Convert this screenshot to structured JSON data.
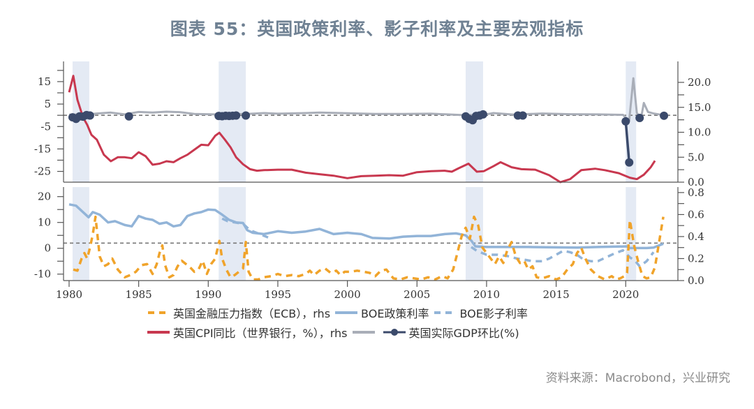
{
  "title": "图表 55：英国政策利率、影子利率及主要宏观指标",
  "source": "资料来源：Macrobond，兴业研究",
  "colors": {
    "cpi": "#c8384f",
    "gdp_line": "#a9aeb8",
    "gdp_dots": "#3b4a6b",
    "policy_rate": "#92b4d8",
    "shadow_rate": "#92b4d8",
    "stress_index": "#f0a32a",
    "recession": "#e4eaf4",
    "refline": "#777777"
  },
  "legend": [
    {
      "label": "英国金融压力指数（ECB），rhs",
      "key": "stress_index",
      "style": "dashed"
    },
    {
      "label": "BOE政策利率",
      "key": "policy_rate",
      "style": "solid"
    },
    {
      "label": "BOE影子利率",
      "key": "shadow_rate",
      "style": "dashed"
    },
    {
      "label": "英国CPI同比（世界银行，%），rhs",
      "key": "cpi",
      "style": "solid"
    },
    {
      "label": "",
      "key": "gdp_line",
      "style": "solid"
    },
    {
      "label": "英国实际GDP环比(%)",
      "key": "gdp_dots",
      "style": "dot-line"
    }
  ],
  "chart_data": [
    {
      "type": "line",
      "title": "英国CPI同比与实际GDP环比",
      "x_ticks": [
        1980,
        1985,
        1990,
        1995,
        2000,
        2005,
        2010,
        2015,
        2020
      ],
      "xlim": [
        1979.6,
        2023.75
      ],
      "left_axis": {
        "ticks": [
          15,
          5,
          -5,
          -15,
          -25
        ],
        "minor_ticks": [
          20,
          10,
          0,
          -10,
          -20
        ],
        "ylim": [
          -29.8,
          24
        ]
      },
      "right_axis": {
        "ticks": [
          "20.0",
          "15.0",
          "10.0",
          "5.0",
          "0.0"
        ],
        "values": [
          20,
          15,
          10,
          5,
          0
        ],
        "ylim": [
          0,
          24.2
        ]
      },
      "reference_line": {
        "axis": "left",
        "value": 0
      },
      "recessions": [
        [
          1980.25,
          1981.45
        ],
        [
          1990.75,
          1992.7
        ],
        [
          2008.5,
          2009.75
        ],
        [
          2020.0,
          2020.75
        ]
      ],
      "series": [
        {
          "name": "英国CPI同比（世界银行，%）",
          "axis": "right",
          "key": "cpi",
          "x": [
            1980.0,
            1980.3,
            1980.6,
            1981.0,
            1981.3,
            1981.6,
            1982.0,
            1982.5,
            1983.0,
            1983.5,
            1984.0,
            1984.5,
            1985.0,
            1985.5,
            1986.0,
            1986.5,
            1987.0,
            1987.5,
            1988.0,
            1988.5,
            1989.0,
            1989.5,
            1990.0,
            1990.5,
            1990.8,
            1991.2,
            1991.6,
            1992.0,
            1992.5,
            1993.0,
            1993.5,
            1994.0,
            1995.0,
            1996.0,
            1997.0,
            1998.0,
            1999.0,
            2000.0,
            2001.0,
            2002.0,
            2003.0,
            2004.0,
            2005.0,
            2006.0,
            2007.0,
            2007.5,
            2008.0,
            2008.7,
            2009.3,
            2009.8,
            2010.5,
            2011.0,
            2011.8,
            2012.5,
            2013.5,
            2014.5,
            2015.3,
            2016.0,
            2016.8,
            2017.8,
            2018.5,
            2019.5,
            2020.3,
            2020.8,
            2021.3,
            2021.8,
            2022.1
          ],
          "values": [
            18.0,
            21.3,
            16.5,
            13.0,
            11.5,
            9.5,
            8.5,
            5.5,
            4.2,
            5.0,
            5.0,
            4.8,
            6.0,
            5.2,
            3.5,
            3.7,
            4.2,
            4.0,
            4.8,
            5.5,
            6.5,
            7.5,
            7.4,
            9.3,
            9.9,
            8.5,
            7.0,
            5.0,
            3.6,
            2.6,
            2.3,
            2.4,
            2.5,
            2.5,
            1.9,
            1.6,
            1.3,
            0.8,
            1.2,
            1.3,
            1.4,
            1.3,
            2.0,
            2.2,
            2.3,
            2.1,
            2.8,
            3.7,
            2.1,
            2.2,
            3.2,
            4.0,
            3.0,
            2.6,
            2.5,
            1.4,
            0.0,
            0.6,
            2.4,
            2.7,
            2.4,
            1.8,
            0.9,
            0.6,
            1.5,
            3.0,
            4.3
          ]
        },
        {
          "name": "英国实际GDP环比(%) 折线",
          "axis": "left",
          "key": "gdp_line",
          "x": [
            1980.0,
            1981.5,
            1982.0,
            1983.0,
            1984.0,
            1985.0,
            1986.0,
            1987.0,
            1988.0,
            1989.0,
            1990.5,
            1992.8,
            1994.0,
            1995.0,
            1997.0,
            1998.0,
            2000.0,
            2002.0,
            2004.0,
            2006.0,
            2008.3,
            2009.8,
            2010.5,
            2012.0,
            2014.0,
            2016.0,
            2018.0,
            2019.8,
            2020.25,
            2020.55,
            2020.8,
            2021.1,
            2021.3,
            2021.6,
            2022.0,
            2022.8
          ],
          "values": [
            0.3,
            0.5,
            0.8,
            1.2,
            0.4,
            1.5,
            1.2,
            1.6,
            1.4,
            0.6,
            0.4,
            0.6,
            1.0,
            0.7,
            1.0,
            1.2,
            0.9,
            0.6,
            0.6,
            0.7,
            0.1,
            0.2,
            1.0,
            0.3,
            0.8,
            0.5,
            0.4,
            0.2,
            -2.5,
            16.5,
            1.0,
            -1.3,
            5.5,
            1.5,
            0.8,
            0.0
          ]
        },
        {
          "name": "英国实际GDP环比(%) 衰退季度",
          "axis": "left",
          "key": "gdp_dots",
          "x": [
            1980.25,
            1980.5,
            1980.75,
            1981.0,
            1981.25,
            1981.5,
            1984.3,
            1990.75,
            1991.0,
            1991.25,
            1991.5,
            1991.75,
            1992.0,
            1992.7,
            2008.5,
            2008.75,
            2009.0,
            2009.25,
            2009.5,
            2009.75,
            2012.25,
            2012.6,
            2020.0,
            2020.25,
            2021.0,
            2022.75
          ],
          "values": [
            -0.9,
            -1.6,
            -0.5,
            -0.6,
            0.1,
            -0.1,
            -0.5,
            -0.3,
            -0.4,
            -0.2,
            -0.3,
            -0.2,
            -0.1,
            -0.1,
            -0.5,
            -1.6,
            -2.2,
            -0.3,
            -0.1,
            0.4,
            -0.1,
            -0.1,
            -2.7,
            -21.0,
            -1.2,
            -0.2
          ],
          "connect_range": [
            22,
            23
          ]
        }
      ]
    },
    {
      "type": "line",
      "title": "BOE政策利率、影子利率与英国金融压力指数",
      "x_ticks": [
        1980,
        1985,
        1990,
        1995,
        2000,
        2005,
        2010,
        2015,
        2020
      ],
      "x_tick_labels": [
        "1980",
        "1985",
        "1990",
        "1995",
        "2000",
        "2005",
        "2010",
        "2015",
        "2020"
      ],
      "xlim": [
        1979.6,
        2023.75
      ],
      "left_axis": {
        "ticks": [
          20,
          10,
          0,
          -10
        ],
        "minor_ticks": [
          15,
          5,
          -5
        ],
        "ylim": [
          -12.5,
          23.7
        ]
      },
      "right_axis": {
        "ticks": [
          "0.8",
          "0.6",
          "0.4",
          "0.2",
          "0.0"
        ],
        "values": [
          0.8,
          0.6,
          0.4,
          0.2,
          0.0
        ],
        "minor_ticks": [
          0.7,
          0.5,
          0.3,
          0.1
        ],
        "ylim": [
          0,
          0.85
        ]
      },
      "reference_line": {
        "axis": "left",
        "value": 2
      },
      "recessions": [
        [
          1980.25,
          1981.45
        ],
        [
          1990.75,
          1992.7
        ],
        [
          2008.5,
          2009.75
        ],
        [
          2020.0,
          2020.75
        ]
      ],
      "series": [
        {
          "name": "BOE政策利率",
          "axis": "left",
          "key": "policy_rate",
          "x": [
            1980.0,
            1980.5,
            1981.0,
            1981.4,
            1981.7,
            1982.2,
            1982.8,
            1983.3,
            1984.0,
            1984.5,
            1985.0,
            1985.5,
            1986.0,
            1986.5,
            1987.0,
            1987.5,
            1988.0,
            1988.5,
            1989.0,
            1989.5,
            1990.0,
            1990.5,
            1991.0,
            1991.5,
            1992.0,
            1992.5,
            1992.8,
            1993.2,
            1994.0,
            1995.0,
            1996.0,
            1997.0,
            1998.0,
            1998.5,
            1999.0,
            2000.0,
            2001.0,
            2001.8,
            2003.0,
            2004.0,
            2005.0,
            2006.0,
            2007.0,
            2007.8,
            2008.5,
            2008.9,
            2009.2,
            2010.0,
            2013.0,
            2016.5,
            2018.0,
            2020.1,
            2020.3,
            2021.5,
            2022.0,
            2022.7
          ],
          "values": [
            17.0,
            16.5,
            14.0,
            12.0,
            14.0,
            13.0,
            10.0,
            10.5,
            9.0,
            8.5,
            12.5,
            11.5,
            11.0,
            9.5,
            10.0,
            8.5,
            9.0,
            12.5,
            13.5,
            14.0,
            15.0,
            14.8,
            13.0,
            11.0,
            10.0,
            9.8,
            7.0,
            6.0,
            5.5,
            6.6,
            6.0,
            6.5,
            7.5,
            6.5,
            5.5,
            6.0,
            5.5,
            4.0,
            3.75,
            4.5,
            4.75,
            4.75,
            5.5,
            5.75,
            5.0,
            3.0,
            0.75,
            0.5,
            0.5,
            0.25,
            0.5,
            0.75,
            0.1,
            0.1,
            0.25,
            1.75
          ]
        },
        {
          "name": "BOE影子利率",
          "axis": "left",
          "key": "shadow_rate",
          "x": [
            1991.0,
            1991.4,
            1992.5,
            1993.0,
            1993.7,
            1994.3,
            2008.9,
            2009.3,
            2010.0,
            2010.8,
            2011.5,
            2012.2,
            2012.8,
            2013.3,
            2014.0,
            2014.5,
            2015.0,
            2015.5,
            2016.0,
            2016.5,
            2017.0,
            2017.5,
            2018.0,
            2018.6,
            2019.2,
            2019.8,
            2020.3,
            2020.7,
            2021.0,
            2021.5,
            2022.0
          ],
          "values": [
            11.5,
            10.5,
            9.5,
            7.0,
            5.5,
            4.2,
            0.5,
            -1.0,
            -2.5,
            -2.5,
            -3.0,
            -4.0,
            -4.5,
            -5.0,
            -5.0,
            -4.0,
            -2.5,
            -1.0,
            -1.5,
            -2.5,
            -4.5,
            -5.0,
            -5.0,
            -3.5,
            -2.0,
            -0.8,
            -3.5,
            -5.0,
            -7.0,
            -5.0,
            -1.5
          ]
        },
        {
          "name": "英国金融压力指数（ECB）",
          "axis": "right",
          "key": "stress_index",
          "x": [
            1980.3,
            1980.6,
            1980.9,
            1981.1,
            1981.3,
            1981.5,
            1981.7,
            1981.9,
            1982.2,
            1982.5,
            1982.8,
            1983.1,
            1983.5,
            1984.0,
            1984.4,
            1984.8,
            1985.2,
            1985.6,
            1986.0,
            1986.3,
            1986.5,
            1986.7,
            1986.9,
            1987.2,
            1987.5,
            1987.8,
            1988.1,
            1988.4,
            1988.7,
            1989.0,
            1989.3,
            1989.6,
            1989.9,
            1990.2,
            1990.5,
            1990.8,
            1991.0,
            1991.3,
            1991.6,
            1991.9,
            1992.2,
            1992.5,
            1992.7,
            1992.9,
            1993.2,
            1993.6,
            1994.0,
            1994.5,
            1995.0,
            1995.5,
            1996.0,
            1996.5,
            1997.0,
            1997.3,
            1997.6,
            1998.0,
            1998.4,
            1998.8,
            1999.2,
            1999.5,
            1999.8,
            2000.2,
            2000.7,
            2001.2,
            2001.6,
            2002.0,
            2002.4,
            2002.8,
            2003.3,
            2003.8,
            2004.3,
            2004.8,
            2005.3,
            2005.8,
            2006.3,
            2006.8,
            2007.2,
            2007.6,
            2007.9,
            2008.2,
            2008.5,
            2008.8,
            2009.1,
            2009.4,
            2009.7,
            2010.0,
            2010.3,
            2010.6,
            2010.9,
            2011.2,
            2011.5,
            2011.8,
            2012.1,
            2012.4,
            2012.7,
            2013.0,
            2013.3,
            2013.6,
            2014.0,
            2014.5,
            2015.0,
            2015.4,
            2015.8,
            2016.2,
            2016.5,
            2016.8,
            2017.1,
            2017.5,
            2018.0,
            2018.5,
            2019.0,
            2019.3,
            2019.6,
            2019.9,
            2020.1,
            2020.3,
            2020.6,
            2020.9,
            2021.2,
            2021.5,
            2021.8,
            2022.1,
            2022.4,
            2022.7
          ],
          "values": [
            0.1,
            0.09,
            0.2,
            0.25,
            0.2,
            0.3,
            0.42,
            0.58,
            0.22,
            0.13,
            0.15,
            0.2,
            0.1,
            0.03,
            0.05,
            0.08,
            0.14,
            0.15,
            0.06,
            0.15,
            0.25,
            0.32,
            0.14,
            0.03,
            0.05,
            0.13,
            0.18,
            0.15,
            0.12,
            0.08,
            0.1,
            0.18,
            0.06,
            0.15,
            0.2,
            0.36,
            0.2,
            0.1,
            0.03,
            0.05,
            0.08,
            0.11,
            0.35,
            0.08,
            0.01,
            0.01,
            0.03,
            0.04,
            0.06,
            0.04,
            0.05,
            0.04,
            0.06,
            0.09,
            0.05,
            0.09,
            0.11,
            0.07,
            0.09,
            0.05,
            0.08,
            0.08,
            0.09,
            0.08,
            0.07,
            0.04,
            0.09,
            0.1,
            0.02,
            0.01,
            0.03,
            0.02,
            0.01,
            0.03,
            0.01,
            0.04,
            0.02,
            0.1,
            0.25,
            0.4,
            0.48,
            0.38,
            0.58,
            0.5,
            0.3,
            0.25,
            0.2,
            0.15,
            0.22,
            0.16,
            0.28,
            0.35,
            0.22,
            0.16,
            0.18,
            0.1,
            0.13,
            0.03,
            0.02,
            0.04,
            0.01,
            0.03,
            0.1,
            0.15,
            0.25,
            0.3,
            0.2,
            0.1,
            0.04,
            0.01,
            0.04,
            0.01,
            0.02,
            0.04,
            0.07,
            0.55,
            0.32,
            0.17,
            0.04,
            0.02,
            0.03,
            0.12,
            0.35,
            0.58
          ]
        }
      ]
    }
  ]
}
